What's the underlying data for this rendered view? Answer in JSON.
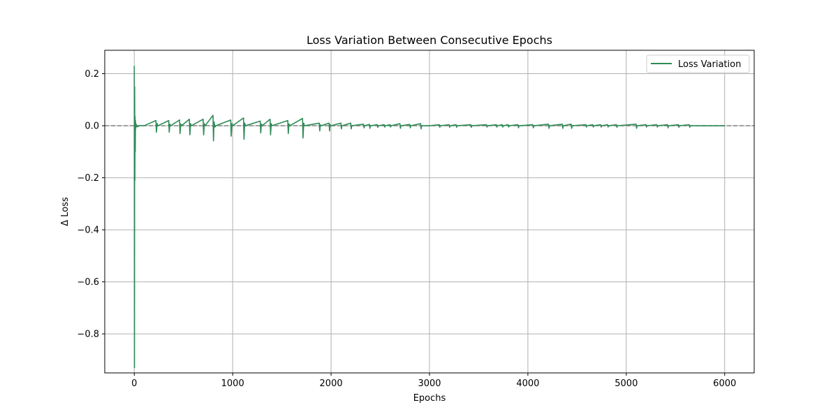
{
  "chart_data": {
    "type": "line",
    "title": "Loss Variation Between Consecutive Epochs",
    "xlabel": "Epochs",
    "ylabel": "Δ Loss",
    "xlim": [
      -300,
      6300
    ],
    "ylim": [
      -0.95,
      0.29
    ],
    "xticks": [
      0,
      1000,
      2000,
      3000,
      4000,
      5000,
      6000
    ],
    "xtick_labels": [
      "0",
      "1000",
      "2000",
      "3000",
      "4000",
      "5000",
      "6000"
    ],
    "yticks": [
      0.2,
      0.0,
      -0.2,
      -0.4,
      -0.6,
      -0.8
    ],
    "ytick_labels": [
      "0.2",
      "0.0",
      "−0.2",
      "−0.4",
      "−0.6",
      "−0.8"
    ],
    "grid": true,
    "legend_position": "top-right",
    "reference_line": {
      "y": 0.0,
      "style": "dashed",
      "color": "#808080"
    },
    "series": [
      {
        "name": "Loss Variation",
        "color": "#2e8b57",
        "x": [
          0,
          2,
          4,
          6,
          8,
          10,
          12,
          15,
          20,
          30,
          60,
          100,
          220,
          225,
          232,
          240,
          350,
          355,
          362,
          370,
          460,
          465,
          472,
          480,
          560,
          565,
          572,
          580,
          700,
          705,
          712,
          720,
          800,
          805,
          810,
          820,
          830,
          980,
          985,
          992,
          1000,
          1110,
          1115,
          1122,
          1130,
          1280,
          1285,
          1292,
          1300,
          1380,
          1385,
          1392,
          1400,
          1560,
          1565,
          1572,
          1580,
          1710,
          1715,
          1722,
          1730,
          1880,
          1885,
          1890,
          1900,
          1980,
          1985,
          1990,
          2000,
          2100,
          2105,
          2110,
          2200,
          2205,
          2210,
          2330,
          2335,
          2340,
          2390,
          2395,
          2400,
          2470,
          2475,
          2480,
          2540,
          2545,
          2550,
          2600,
          2605,
          2610,
          2700,
          2705,
          2710,
          2800,
          2805,
          2810,
          2910,
          2915,
          2920,
          3000,
          3100,
          3105,
          3110,
          3200,
          3205,
          3210,
          3270,
          3275,
          3280,
          3420,
          3425,
          3430,
          3580,
          3585,
          3590,
          3680,
          3685,
          3690,
          3740,
          3745,
          3750,
          3800,
          3805,
          3810,
          3900,
          3905,
          3910,
          4050,
          4055,
          4060,
          4210,
          4215,
          4220,
          4350,
          4355,
          4360,
          4440,
          4445,
          4450,
          4590,
          4595,
          4600,
          4660,
          4665,
          4670,
          4740,
          4745,
          4750,
          4810,
          4815,
          4820,
          4900,
          4905,
          4910,
          5100,
          5105,
          5110,
          5200,
          5205,
          5210,
          5310,
          5315,
          5320,
          5420,
          5425,
          5430,
          5530,
          5535,
          5540,
          5640,
          5645,
          5650,
          5800,
          6000
        ],
        "values": [
          0.23,
          -0.93,
          0.15,
          -0.21,
          0.035,
          -0.1,
          0.02,
          -0.01,
          0.005,
          -0.004,
          0.001,
          0.0,
          0.02,
          -0.025,
          0.008,
          0.0,
          0.02,
          -0.025,
          0.006,
          0.0,
          0.022,
          -0.03,
          0.007,
          0.0,
          0.025,
          -0.035,
          0.008,
          0.0,
          0.025,
          -0.035,
          0.008,
          0.0,
          0.04,
          -0.058,
          0.015,
          -0.005,
          0.0,
          0.022,
          -0.04,
          0.008,
          0.0,
          0.03,
          -0.052,
          0.01,
          0.0,
          0.018,
          -0.028,
          0.006,
          0.0,
          0.025,
          -0.035,
          0.008,
          0.0,
          0.02,
          -0.03,
          0.007,
          0.0,
          0.028,
          -0.047,
          0.01,
          0.0,
          0.01,
          -0.02,
          0.004,
          0.0,
          0.01,
          -0.02,
          0.004,
          0.0,
          0.01,
          -0.012,
          0.0,
          0.01,
          -0.012,
          0.0,
          0.006,
          -0.008,
          0.0,
          0.005,
          -0.01,
          0.0,
          0.004,
          -0.006,
          0.0,
          0.004,
          -0.005,
          0.0,
          0.004,
          -0.005,
          0.0,
          0.008,
          -0.01,
          0.0,
          0.005,
          -0.008,
          0.0,
          0.008,
          -0.012,
          0.0,
          0.0,
          0.004,
          -0.006,
          0.0,
          0.004,
          -0.006,
          0.0,
          0.004,
          -0.006,
          0.0,
          0.004,
          -0.006,
          0.0,
          0.004,
          -0.005,
          0.0,
          0.004,
          -0.005,
          0.0,
          0.004,
          -0.005,
          0.0,
          0.004,
          -0.005,
          0.0,
          0.004,
          -0.008,
          0.0,
          0.004,
          -0.008,
          0.0,
          0.006,
          -0.01,
          0.0,
          0.006,
          -0.01,
          0.0,
          0.006,
          -0.01,
          0.0,
          0.004,
          -0.005,
          0.0,
          0.004,
          -0.005,
          0.0,
          0.004,
          -0.005,
          0.0,
          0.004,
          -0.005,
          0.0,
          0.004,
          -0.006,
          0.0,
          0.006,
          -0.01,
          0.0,
          0.004,
          -0.005,
          0.0,
          0.004,
          -0.005,
          0.0,
          0.004,
          -0.008,
          0.0,
          0.004,
          -0.006,
          0.0,
          0.004,
          -0.006,
          0.0,
          0.0,
          0.0
        ]
      }
    ]
  }
}
